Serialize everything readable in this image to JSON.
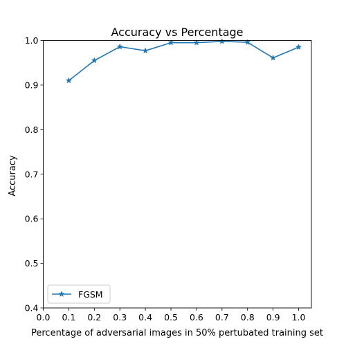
{
  "chart_data": {
    "type": "line",
    "title": "Accuracy vs Percentage",
    "xlabel": "Percentage of adversarial images in 50% pertubated training set",
    "ylabel": "Accuracy",
    "xlim": [
      0.0,
      1.05
    ],
    "ylim": [
      0.4,
      1.0
    ],
    "x_ticks": [
      0.0,
      0.1,
      0.2,
      0.3,
      0.4,
      0.5,
      0.6,
      0.7,
      0.8,
      0.9,
      1.0
    ],
    "x_tick_labels": [
      "0.0",
      "0.1",
      "0.2",
      "0.3",
      "0.4",
      "0.5",
      "0.6",
      "0.7",
      "0.8",
      "0.9",
      "1.0"
    ],
    "y_ticks": [
      0.4,
      0.5,
      0.6,
      0.7,
      0.8,
      0.9,
      1.0
    ],
    "y_tick_labels": [
      "0.4",
      "0.5",
      "0.6",
      "0.7",
      "0.8",
      "0.9",
      "1.0"
    ],
    "grid": false,
    "legend_position": "lower-left",
    "series": [
      {
        "name": "FGSM",
        "color": "#1f77b4",
        "marker": "star",
        "x": [
          0.1,
          0.2,
          0.3,
          0.4,
          0.5,
          0.6,
          0.7,
          0.8,
          0.9,
          1.0
        ],
        "values": [
          0.91,
          0.955,
          0.986,
          0.977,
          0.995,
          0.995,
          0.998,
          0.996,
          0.961,
          0.985
        ]
      }
    ]
  }
}
